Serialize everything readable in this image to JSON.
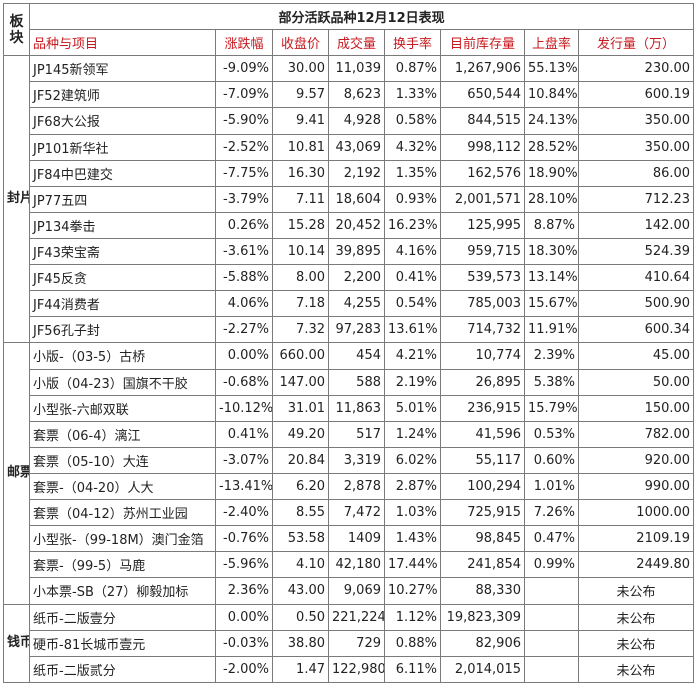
{
  "title": "部分活跃品种12月12日表现",
  "board_label": "板块",
  "headers": [
    "品种与项目",
    "涨跌幅",
    "收盘价",
    "成交量",
    "换手率",
    "目前库存量",
    "上盘率",
    "发行量（万）"
  ],
  "colors": {
    "accent": "#2b6cc4",
    "header": "#c8191e",
    "up": "#e0000a",
    "down": "#10a32a"
  },
  "sections": [
    {
      "category": "封片",
      "rows": [
        {
          "name": "JP145新领军",
          "change": "-9.09%",
          "dir": "down",
          "close": "30.00",
          "volume": "11,039",
          "turnover": "0.87%",
          "stock": "1,267,906",
          "rate": "55.13%",
          "issue": "230.00"
        },
        {
          "name": "JF52建筑师",
          "change": "-7.09%",
          "dir": "down",
          "close": "9.57",
          "volume": "8,623",
          "turnover": "1.33%",
          "stock": "650,544",
          "rate": "10.84%",
          "issue": "600.19"
        },
        {
          "name": "JF68大公报",
          "change": "-5.90%",
          "dir": "down",
          "close": "9.41",
          "volume": "4,928",
          "turnover": "0.58%",
          "stock": "844,515",
          "rate": "24.13%",
          "issue": "350.00"
        },
        {
          "name": "JP101新华社",
          "change": "-2.52%",
          "dir": "down",
          "close": "10.81",
          "volume": "43,069",
          "turnover": "4.32%",
          "stock": "998,112",
          "rate": "28.52%",
          "issue": "350.00"
        },
        {
          "name": "JF84中巴建交",
          "change": "-7.75%",
          "dir": "down",
          "close": "16.30",
          "volume": "2,192",
          "turnover": "1.35%",
          "stock": "162,576",
          "rate": "18.90%",
          "issue": "86.00"
        },
        {
          "name": "JP77五四",
          "change": "-3.79%",
          "dir": "down",
          "close": "7.11",
          "volume": "18,604",
          "turnover": "0.93%",
          "stock": "2,001,571",
          "rate": "28.10%",
          "issue": "712.23"
        },
        {
          "name": "JP134拳击",
          "change": "0.26%",
          "dir": "up",
          "close": "15.28",
          "volume": "20,452",
          "turnover": "16.23%",
          "stock": "125,995",
          "rate": "8.87%",
          "issue": "142.00"
        },
        {
          "name": "JF43荣宝斋",
          "change": "-3.61%",
          "dir": "down",
          "close": "10.14",
          "volume": "39,895",
          "turnover": "4.16%",
          "stock": "959,715",
          "rate": "18.30%",
          "issue": "524.39"
        },
        {
          "name": "JF45反贪",
          "change": "-5.88%",
          "dir": "down",
          "close": "8.00",
          "volume": "2,200",
          "turnover": "0.41%",
          "stock": "539,573",
          "rate": "13.14%",
          "issue": "410.64"
        },
        {
          "name": "JF44消费者",
          "change": "4.06%",
          "dir": "up",
          "close": "7.18",
          "volume": "4,255",
          "turnover": "0.54%",
          "stock": "785,003",
          "rate": "15.67%",
          "issue": "500.90"
        },
        {
          "name": "JF56孔子封",
          "change": "-2.27%",
          "dir": "down",
          "close": "7.32",
          "volume": "97,283",
          "turnover": "13.61%",
          "stock": "714,732",
          "rate": "11.91%",
          "issue": "600.34"
        }
      ]
    },
    {
      "category": "邮票",
      "rows": [
        {
          "name": "小版-（03-5）古桥",
          "change": "0.00%",
          "dir": "flat",
          "close": "660.00",
          "volume": "454",
          "turnover": "4.21%",
          "stock": "10,774",
          "rate": "2.39%",
          "issue": "45.00"
        },
        {
          "name": "小版（04-23）国旗不干胶",
          "change": "-0.68%",
          "dir": "down",
          "close": "147.00",
          "volume": "588",
          "turnover": "2.19%",
          "stock": "26,895",
          "rate": "5.38%",
          "issue": "50.00"
        },
        {
          "name": "小型张-六邮双联",
          "change": "-10.12%",
          "dir": "down",
          "close": "31.01",
          "volume": "11,863",
          "turnover": "5.01%",
          "stock": "236,915",
          "rate": "15.79%",
          "issue": "150.00"
        },
        {
          "name": "套票（06-4）漓江",
          "change": "0.41%",
          "dir": "up",
          "close": "49.20",
          "volume": "517",
          "turnover": "1.24%",
          "stock": "41,596",
          "rate": "0.53%",
          "issue": "782.00"
        },
        {
          "name": "套票（05-10）大连",
          "change": "-3.07%",
          "dir": "down",
          "close": "20.84",
          "volume": "3,319",
          "turnover": "6.02%",
          "stock": "55,117",
          "rate": "0.60%",
          "issue": "920.00"
        },
        {
          "name": "套票-（04-20）人大",
          "change": "-13.41%",
          "dir": "down",
          "close": "6.20",
          "volume": "2,878",
          "turnover": "2.87%",
          "stock": "100,294",
          "rate": "1.01%",
          "issue": "990.00"
        },
        {
          "name": "套票（04-12）苏州工业园",
          "change": "-2.40%",
          "dir": "down",
          "close": "8.55",
          "volume": "7,472",
          "turnover": "1.03%",
          "stock": "725,915",
          "rate": "7.26%",
          "issue": "1000.00"
        },
        {
          "name": "小型张-（99-18M）澳门金箔",
          "change": "-0.76%",
          "dir": "down",
          "close": "53.58",
          "volume": "1409",
          "turnover": "1.43%",
          "stock": "98,845",
          "rate": "0.47%",
          "issue": "2109.19",
          "small": true
        },
        {
          "name": "套票-（99-5）马鹿",
          "change": "-5.96%",
          "dir": "down",
          "close": "4.10",
          "volume": "42,180",
          "turnover": "17.44%",
          "stock": "241,854",
          "rate": "0.99%",
          "issue": "2449.80"
        },
        {
          "name": "小本票-SB（27）柳毅加标",
          "change": "2.36%",
          "dir": "up",
          "close": "43.00",
          "volume": "9,069",
          "turnover": "10.27%",
          "stock": "88,330",
          "rate": "",
          "issue": "未公布"
        }
      ]
    },
    {
      "category": "钱币",
      "rows": [
        {
          "name": "纸币-二版壹分",
          "change": "0.00%",
          "dir": "flat",
          "close": "0.50",
          "volume": "221,224",
          "turnover": "1.12%",
          "stock": "19,823,309",
          "rate": "",
          "issue": "未公布"
        },
        {
          "name": "硬币-81长城币壹元",
          "change": "-0.03%",
          "dir": "down",
          "close": "38.80",
          "volume": "729",
          "turnover": "0.88%",
          "stock": "82,906",
          "rate": "",
          "issue": "未公布"
        },
        {
          "name": "纸币-二版贰分",
          "change": "-2.00%",
          "dir": "down",
          "close": "1.47",
          "volume": "122,980",
          "turnover": "6.11%",
          "stock": "2,014,015",
          "rate": "",
          "issue": "未公布"
        }
      ]
    }
  ]
}
